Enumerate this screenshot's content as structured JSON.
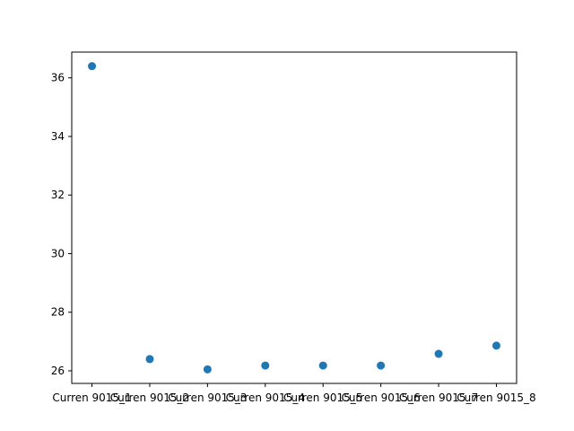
{
  "chart_data": {
    "type": "scatter",
    "title": "",
    "xlabel": "",
    "ylabel": "",
    "categories": [
      "Curren 9015_1",
      "Curren 9015_2",
      "Curren 9015_3",
      "Curren 9015_4",
      "Curren 9015_5",
      "Curren 9015_6",
      "Curren 9015_7",
      "Curren 9015_8"
    ],
    "values": [
      36.4,
      26.4,
      26.05,
      26.18,
      26.18,
      26.18,
      26.58,
      26.86
    ],
    "ylim": [
      25.57,
      36.88
    ],
    "yticks": [
      26,
      28,
      30,
      32,
      34,
      36
    ],
    "ytick_labels": [
      "26",
      "28",
      "30",
      "32",
      "34",
      "36"
    ],
    "grid": false,
    "legend": false,
    "marker_color": "#1f77b4"
  }
}
